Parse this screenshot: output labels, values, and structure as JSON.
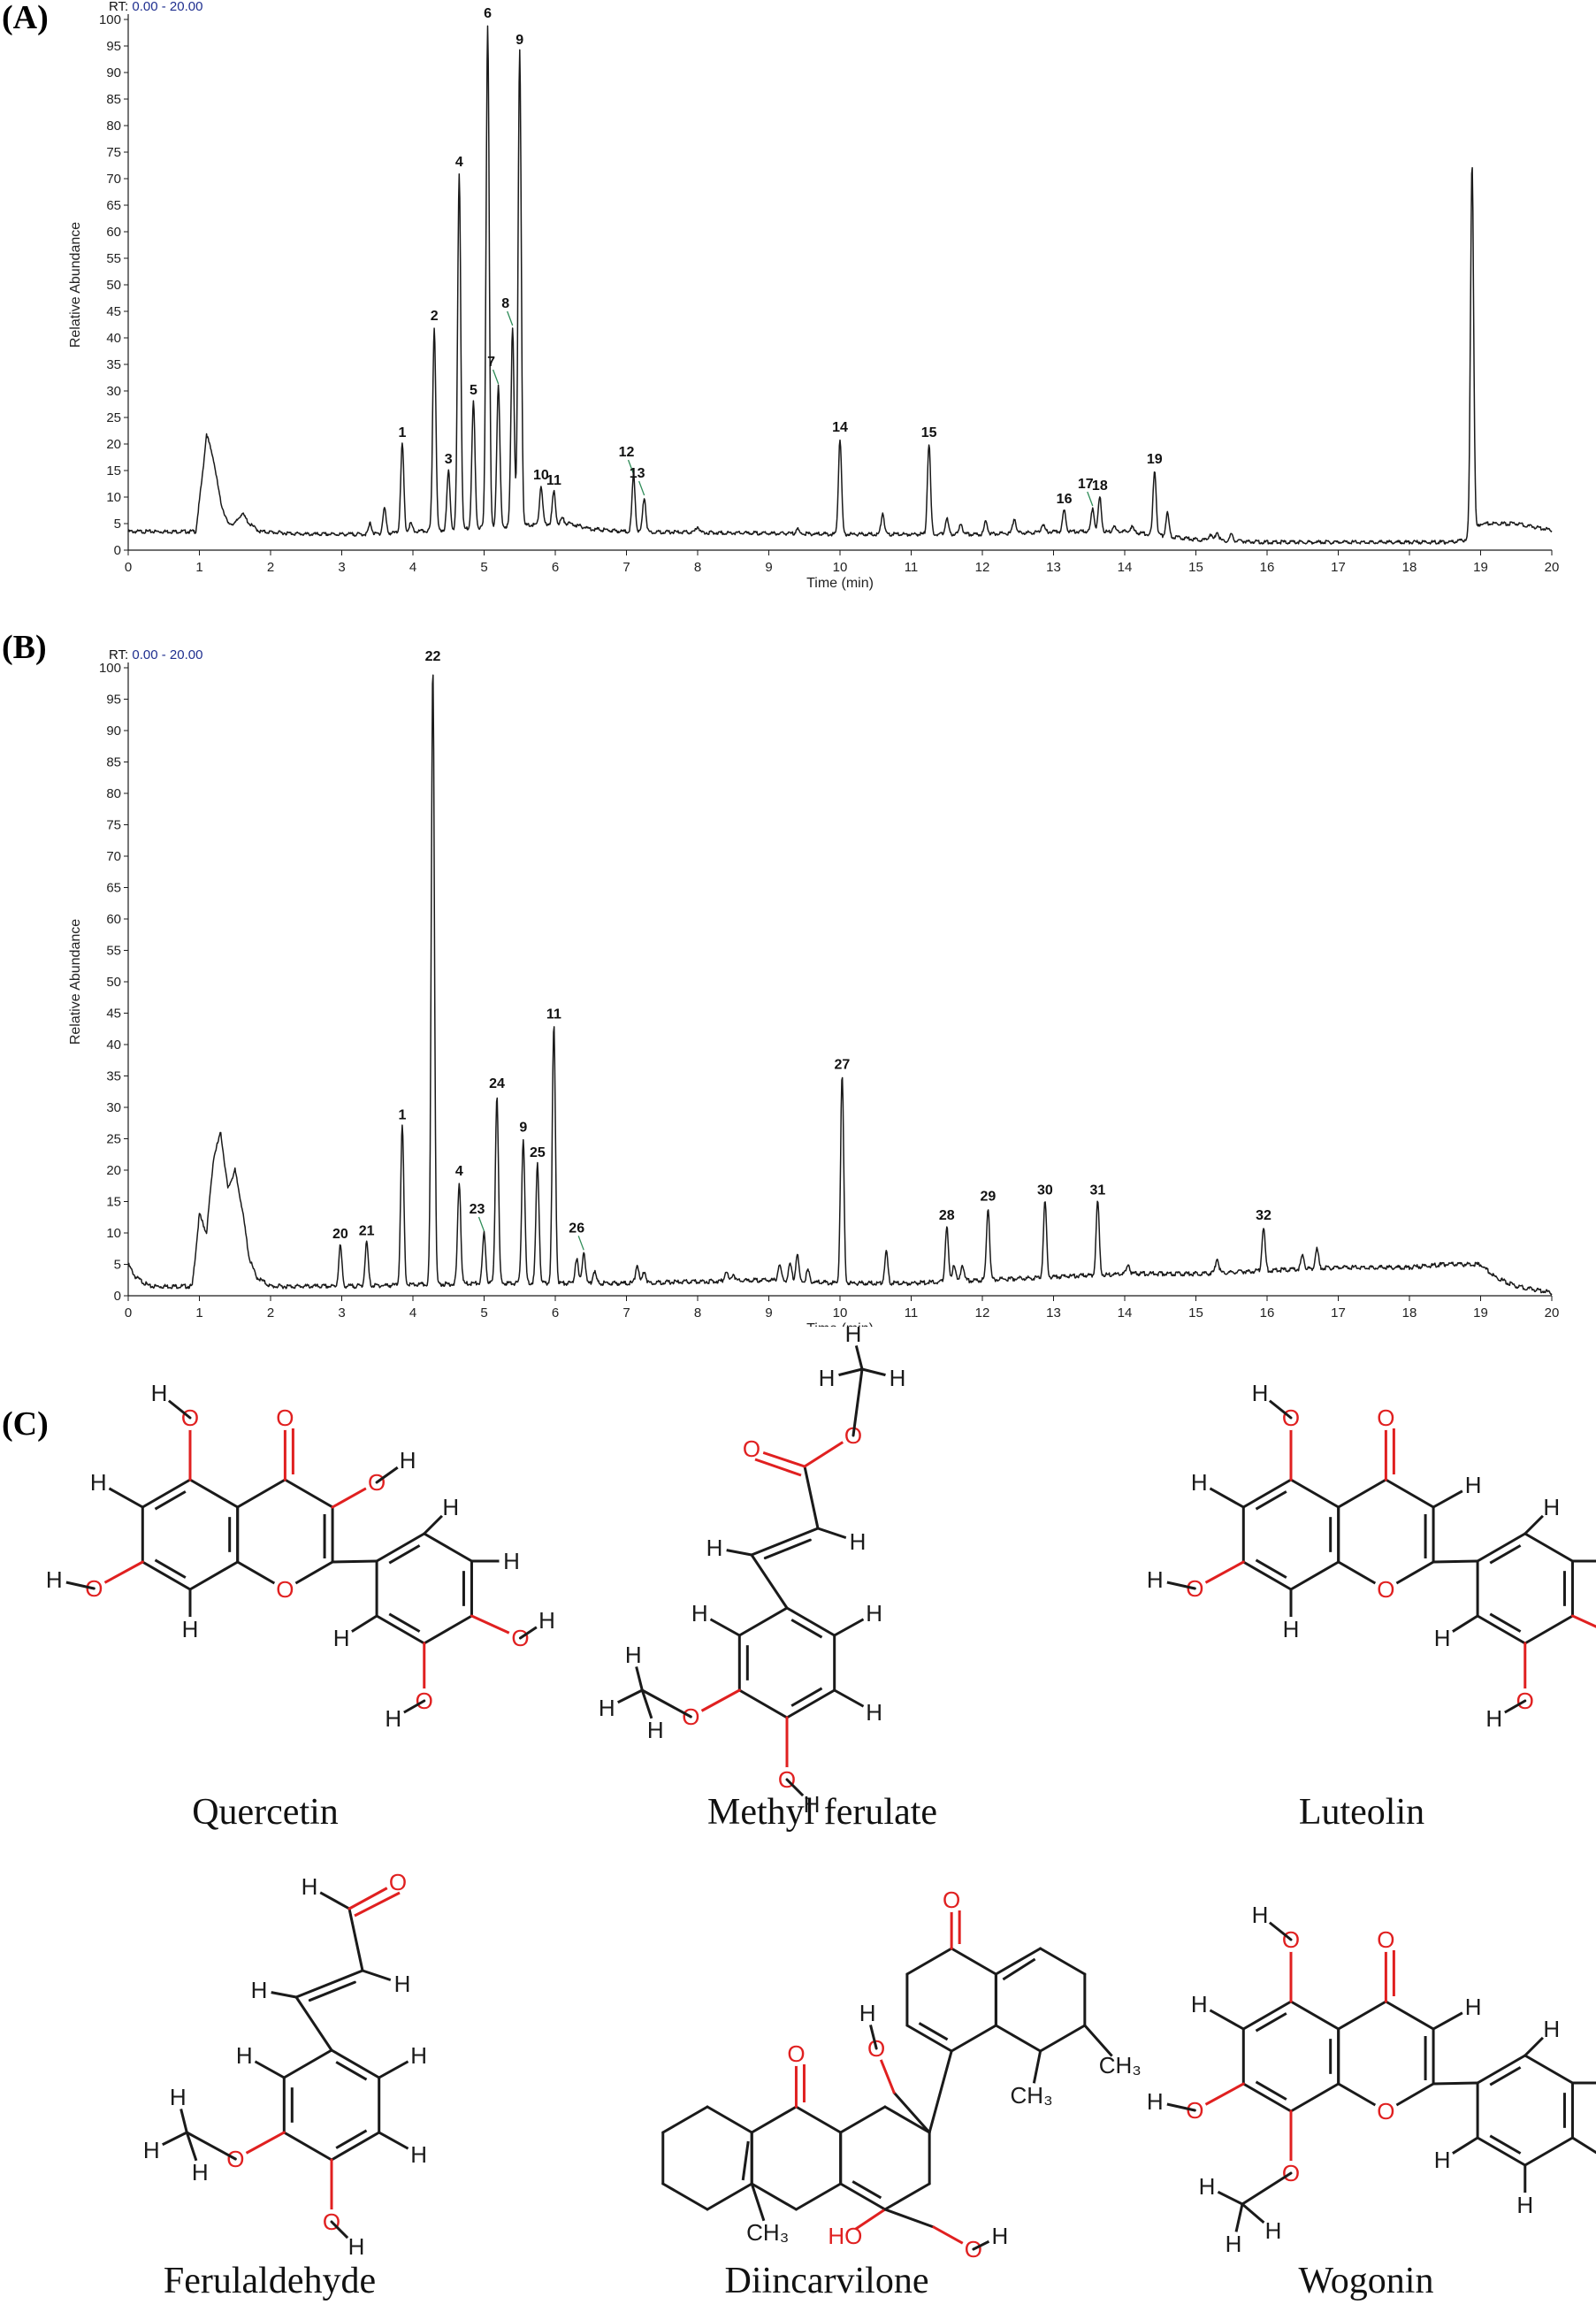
{
  "panels": {
    "a_label": "(A)",
    "b_label": "(B)",
    "c_label": "(C)"
  },
  "colors": {
    "trace": "#1a1a1a",
    "rt_text": "#1f2f8f",
    "leader": "#2e8b57",
    "oxygen": "#e02020",
    "bond": "#1a1a1a"
  },
  "chart_data": [
    {
      "type": "line",
      "panel": "A",
      "rt_label": "RT: 0.00 - 20.00",
      "xlabel": "Time (min)",
      "ylabel": "Relative Abundance",
      "xlim": [
        0,
        20
      ],
      "ylim": [
        0,
        100
      ],
      "x_ticks": [
        0,
        1,
        2,
        3,
        4,
        5,
        6,
        7,
        8,
        9,
        10,
        11,
        12,
        13,
        14,
        15,
        16,
        17,
        18,
        19,
        20
      ],
      "y_ticks": [
        0,
        5,
        10,
        15,
        20,
        25,
        30,
        35,
        40,
        45,
        50,
        55,
        60,
        65,
        70,
        75,
        80,
        85,
        90,
        95,
        100
      ],
      "baseline": [
        [
          0,
          3.5
        ],
        [
          0.95,
          3.5
        ],
        [
          1.05,
          15
        ],
        [
          1.1,
          22
        ],
        [
          1.2,
          17
        ],
        [
          1.3,
          9
        ],
        [
          1.4,
          5
        ],
        [
          1.5,
          5
        ],
        [
          1.6,
          7
        ],
        [
          1.7,
          5
        ],
        [
          1.85,
          3.5
        ],
        [
          2.5,
          3
        ],
        [
          3,
          3
        ],
        [
          3.4,
          3
        ],
        [
          6,
          5
        ],
        [
          6.2,
          5
        ],
        [
          6.5,
          4
        ],
        [
          7,
          3.5
        ],
        [
          10,
          3
        ],
        [
          12,
          3
        ],
        [
          13,
          3.5
        ],
        [
          14,
          3.5
        ],
        [
          15,
          2
        ],
        [
          16,
          1.5
        ],
        [
          16.5,
          1.5
        ],
        [
          17,
          1.5
        ],
        [
          18,
          1.5
        ],
        [
          18.6,
          1.5
        ],
        [
          18.8,
          2
        ],
        [
          19,
          5
        ],
        [
          19.5,
          5
        ],
        [
          19.9,
          4
        ],
        [
          20,
          3.8
        ]
      ],
      "peaks": [
        {
          "x": 3.4,
          "y": 5
        },
        {
          "x": 3.6,
          "y": 8
        },
        {
          "x": 3.85,
          "y": 20,
          "label": "1"
        },
        {
          "x": 3.97,
          "y": 5
        },
        {
          "x": 4.3,
          "y": 42,
          "label": "2"
        },
        {
          "x": 4.5,
          "y": 15,
          "label": "3"
        },
        {
          "x": 4.65,
          "y": 71,
          "label": "4"
        },
        {
          "x": 4.85,
          "y": 28,
          "label": "5"
        },
        {
          "x": 5.05,
          "y": 99,
          "label": "6"
        },
        {
          "x": 5.2,
          "y": 31,
          "label": "7"
        },
        {
          "x": 5.4,
          "y": 42,
          "label": "8"
        },
        {
          "x": 5.5,
          "y": 94,
          "label": "9"
        },
        {
          "x": 5.8,
          "y": 12,
          "label": "10"
        },
        {
          "x": 5.98,
          "y": 11,
          "label": "11"
        },
        {
          "x": 6.1,
          "y": 6
        },
        {
          "x": 7.1,
          "y": 14,
          "label": "12"
        },
        {
          "x": 7.25,
          "y": 10,
          "label": "13"
        },
        {
          "x": 8,
          "y": 4.5
        },
        {
          "x": 9.4,
          "y": 4
        },
        {
          "x": 10,
          "y": 21,
          "label": "14"
        },
        {
          "x": 10.6,
          "y": 7
        },
        {
          "x": 11.25,
          "y": 20,
          "label": "15"
        },
        {
          "x": 11.5,
          "y": 6
        },
        {
          "x": 11.7,
          "y": 5
        },
        {
          "x": 12.05,
          "y": 5.5
        },
        {
          "x": 12.45,
          "y": 6
        },
        {
          "x": 12.85,
          "y": 5
        },
        {
          "x": 13.15,
          "y": 7.5,
          "label": "16"
        },
        {
          "x": 13.55,
          "y": 8,
          "label": "17"
        },
        {
          "x": 13.65,
          "y": 10,
          "label": "18"
        },
        {
          "x": 13.85,
          "y": 4.5
        },
        {
          "x": 14.1,
          "y": 4.5
        },
        {
          "x": 14.42,
          "y": 15,
          "label": "19"
        },
        {
          "x": 14.6,
          "y": 7
        },
        {
          "x": 15.2,
          "y": 3
        },
        {
          "x": 15.3,
          "y": 3.5
        },
        {
          "x": 15.5,
          "y": 3
        },
        {
          "x": 18.88,
          "y": 73
        }
      ],
      "leaders": [
        "7",
        "8",
        "12",
        "13",
        "17"
      ]
    },
    {
      "type": "line",
      "panel": "B",
      "rt_label": "RT: 0.00 - 20.00",
      "xlabel": "Time (min)",
      "ylabel": "Relative Abundance",
      "xlim": [
        0,
        20
      ],
      "ylim": [
        0,
        100
      ],
      "x_ticks": [
        0,
        1,
        2,
        3,
        4,
        5,
        6,
        7,
        8,
        9,
        10,
        11,
        12,
        13,
        14,
        15,
        16,
        17,
        18,
        19,
        20
      ],
      "y_ticks": [
        0,
        5,
        10,
        15,
        20,
        25,
        30,
        35,
        40,
        45,
        50,
        55,
        60,
        65,
        70,
        75,
        80,
        85,
        90,
        95,
        100
      ],
      "baseline": [
        [
          0,
          5
        ],
        [
          0.1,
          3
        ],
        [
          0.3,
          1.5
        ],
        [
          0.9,
          1.5
        ],
        [
          1,
          13
        ],
        [
          1.1,
          10
        ],
        [
          1.2,
          22
        ],
        [
          1.3,
          26
        ],
        [
          1.4,
          17
        ],
        [
          1.5,
          20
        ],
        [
          1.6,
          14
        ],
        [
          1.7,
          6
        ],
        [
          1.8,
          3
        ],
        [
          2,
          1.5
        ],
        [
          2.5,
          1.5
        ],
        [
          3,
          1.5
        ],
        [
          5,
          2
        ],
        [
          7,
          2
        ],
        [
          9,
          2.5
        ],
        [
          10,
          2
        ],
        [
          11,
          2
        ],
        [
          13,
          3
        ],
        [
          14,
          3.5
        ],
        [
          15,
          3.5
        ],
        [
          16,
          4
        ],
        [
          17,
          4.5
        ],
        [
          18,
          4.5
        ],
        [
          18.5,
          5
        ],
        [
          19,
          5
        ],
        [
          19.2,
          3
        ],
        [
          19.5,
          1.5
        ],
        [
          20,
          0.5
        ]
      ],
      "peaks": [
        {
          "x": 2.98,
          "y": 8,
          "label": "20"
        },
        {
          "x": 3.35,
          "y": 8.5,
          "label": "21"
        },
        {
          "x": 3.85,
          "y": 27,
          "label": "1"
        },
        {
          "x": 4.28,
          "y": 100,
          "label": "22"
        },
        {
          "x": 4.65,
          "y": 18,
          "label": "4"
        },
        {
          "x": 5.0,
          "y": 10,
          "label": "23"
        },
        {
          "x": 5.18,
          "y": 32,
          "label": "24"
        },
        {
          "x": 5.55,
          "y": 25,
          "label": "9"
        },
        {
          "x": 5.75,
          "y": 21,
          "label": "25"
        },
        {
          "x": 5.98,
          "y": 43,
          "label": "11"
        },
        {
          "x": 6.3,
          "y": 6
        },
        {
          "x": 6.4,
          "y": 7,
          "label": "26"
        },
        {
          "x": 6.55,
          "y": 4
        },
        {
          "x": 7.15,
          "y": 5
        },
        {
          "x": 7.25,
          "y": 4
        },
        {
          "x": 8.4,
          "y": 4
        },
        {
          "x": 8.5,
          "y": 3.5
        },
        {
          "x": 9.15,
          "y": 5
        },
        {
          "x": 9.3,
          "y": 5
        },
        {
          "x": 9.4,
          "y": 6.5
        },
        {
          "x": 9.55,
          "y": 4
        },
        {
          "x": 10.03,
          "y": 35,
          "label": "27"
        },
        {
          "x": 10.65,
          "y": 7
        },
        {
          "x": 11.5,
          "y": 11,
          "label": "28"
        },
        {
          "x": 11.6,
          "y": 5
        },
        {
          "x": 11.72,
          "y": 5
        },
        {
          "x": 12.08,
          "y": 14,
          "label": "29"
        },
        {
          "x": 12.88,
          "y": 15,
          "label": "30"
        },
        {
          "x": 13.62,
          "y": 15,
          "label": "31"
        },
        {
          "x": 14.05,
          "y": 5
        },
        {
          "x": 15.3,
          "y": 6
        },
        {
          "x": 15.95,
          "y": 11,
          "label": "32"
        },
        {
          "x": 16.5,
          "y": 6.5
        },
        {
          "x": 16.7,
          "y": 7.5
        }
      ],
      "leaders": [
        "23",
        "26"
      ]
    }
  ],
  "compounds": [
    {
      "name": "Quercetin"
    },
    {
      "name": "Methyl ferulate"
    },
    {
      "name": "Luteolin"
    },
    {
      "name": "Ferulaldehyde"
    },
    {
      "name": "Diincarvilone"
    },
    {
      "name": "Wogonin"
    }
  ],
  "atoms": {
    "H": "H",
    "O": "O",
    "CH3": "CH₃",
    "OH": "OH",
    "HO": "HO"
  }
}
